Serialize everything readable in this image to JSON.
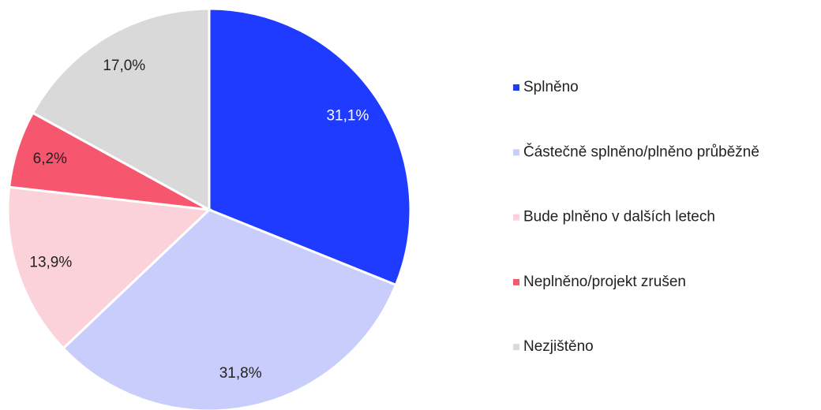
{
  "chart_data": {
    "type": "pie",
    "categories": [
      "Splněno",
      "Částečně splněno/plněno průběžně",
      "Bude plněno v dalších letech",
      "Neplněno/projekt zrušen",
      "Nezjištěno"
    ],
    "values": [
      31.1,
      31.8,
      13.9,
      6.2,
      17.0
    ],
    "value_labels": [
      "31,1%",
      "31,8%",
      "13,9%",
      "6,2%",
      "17,0%"
    ],
    "colors": [
      "#1f3bff",
      "#c9cdfc",
      "#fcd2da",
      "#f7566f",
      "#d9d9d9"
    ],
    "legend": "right"
  }
}
